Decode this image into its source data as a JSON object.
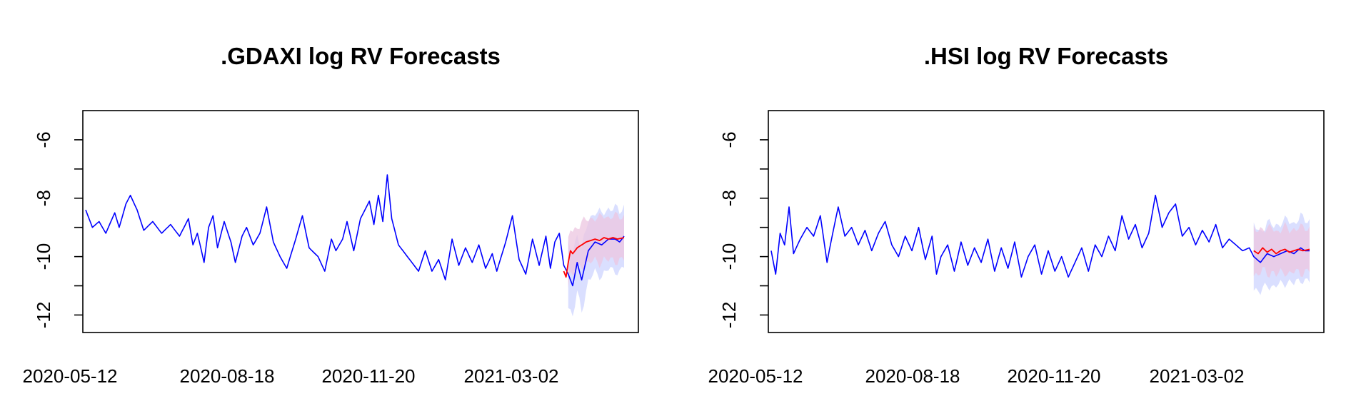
{
  "chart_data": [
    {
      "type": "line",
      "title": ".GDAXI log RV Forecasts",
      "xlabel": "",
      "ylabel": "",
      "x_tick_labels": [
        "2020-05-12",
        "2020-08-18",
        "2020-11-20",
        "2021-03-02"
      ],
      "y_tick_labels": [
        "-12",
        "-10",
        "-8",
        "-6"
      ],
      "y_ticks": [
        -12,
        -10,
        -8,
        -6
      ],
      "ylim": [
        -12.6,
        -5.0
      ],
      "n_points": 242,
      "forecast_start_index": 216,
      "grid": false,
      "legend": "none",
      "colors": {
        "realized": "#0000ff",
        "forecast": "#ff0000",
        "band_realized": "#d6dcff",
        "band_forecast": "#ecc6e0"
      },
      "series": [
        {
          "values_by_index": [
            [
              0,
              -8.4
            ],
            [
              3,
              -9.0
            ],
            [
              6,
              -8.8
            ],
            [
              9,
              -9.2
            ],
            [
              13,
              -8.5
            ],
            [
              15,
              -9.0
            ],
            [
              18,
              -8.2
            ],
            [
              20,
              -7.9
            ],
            [
              23,
              -8.4
            ],
            [
              26,
              -9.1
            ],
            [
              30,
              -8.8
            ],
            [
              34,
              -9.2
            ],
            [
              38,
              -8.9
            ],
            [
              42,
              -9.3
            ],
            [
              46,
              -8.7
            ],
            [
              48,
              -9.6
            ],
            [
              50,
              -9.2
            ],
            [
              53,
              -10.2
            ],
            [
              55,
              -9.0
            ],
            [
              57,
              -8.6
            ],
            [
              59,
              -9.7
            ],
            [
              62,
              -8.8
            ],
            [
              65,
              -9.5
            ],
            [
              67,
              -10.2
            ],
            [
              70,
              -9.3
            ],
            [
              72,
              -9.0
            ],
            [
              75,
              -9.6
            ],
            [
              78,
              -9.2
            ],
            [
              81,
              -8.3
            ],
            [
              84,
              -9.5
            ],
            [
              87,
              -10.0
            ],
            [
              90,
              -10.4
            ],
            [
              94,
              -9.4
            ],
            [
              97,
              -8.6
            ],
            [
              100,
              -9.7
            ],
            [
              104,
              -10.0
            ],
            [
              107,
              -10.5
            ],
            [
              110,
              -9.4
            ],
            [
              112,
              -9.8
            ],
            [
              115,
              -9.4
            ],
            [
              117,
              -8.8
            ],
            [
              120,
              -9.8
            ],
            [
              123,
              -8.7
            ],
            [
              127,
              -8.1
            ],
            [
              129,
              -8.9
            ],
            [
              131,
              -7.9
            ],
            [
              133,
              -8.8
            ],
            [
              135,
              -7.2
            ],
            [
              137,
              -8.7
            ],
            [
              140,
              -9.6
            ],
            [
              143,
              -9.9
            ],
            [
              146,
              -10.2
            ],
            [
              149,
              -10.5
            ],
            [
              152,
              -9.8
            ],
            [
              155,
              -10.5
            ],
            [
              158,
              -10.1
            ],
            [
              161,
              -10.8
            ],
            [
              164,
              -9.4
            ],
            [
              167,
              -10.3
            ],
            [
              170,
              -9.7
            ],
            [
              173,
              -10.2
            ],
            [
              176,
              -9.6
            ],
            [
              179,
              -10.4
            ],
            [
              182,
              -9.9
            ],
            [
              184,
              -10.5
            ],
            [
              188,
              -9.5
            ],
            [
              191,
              -8.6
            ],
            [
              194,
              -10.1
            ],
            [
              197,
              -10.6
            ],
            [
              200,
              -9.4
            ],
            [
              203,
              -10.3
            ],
            [
              206,
              -9.3
            ],
            [
              208,
              -10.4
            ],
            [
              210,
              -9.5
            ],
            [
              212,
              -9.2
            ],
            [
              214,
              -10.3
            ],
            [
              216,
              -10.6
            ],
            [
              218,
              -11.0
            ],
            [
              220,
              -10.2
            ],
            [
              222,
              -10.8
            ],
            [
              225,
              -9.8
            ],
            [
              228,
              -9.5
            ],
            [
              231,
              -9.6
            ],
            [
              234,
              -9.4
            ],
            [
              237,
              -9.4
            ],
            [
              239,
              -9.5
            ],
            [
              241,
              -9.3
            ]
          ]
        },
        {
          "values_by_index": [
            [
              214,
              -10.5
            ],
            [
              215,
              -10.7
            ],
            [
              216,
              -10.2
            ],
            [
              217,
              -9.8
            ],
            [
              218,
              -9.9
            ],
            [
              220,
              -9.7
            ],
            [
              222,
              -9.6
            ],
            [
              224,
              -9.5
            ],
            [
              226,
              -9.45
            ],
            [
              228,
              -9.4
            ],
            [
              230,
              -9.45
            ],
            [
              232,
              -9.35
            ],
            [
              234,
              -9.4
            ],
            [
              236,
              -9.35
            ],
            [
              238,
              -9.4
            ],
            [
              241,
              -9.35
            ]
          ]
        }
      ]
    },
    {
      "type": "line",
      "title": ".HSI log RV Forecasts",
      "xlabel": "",
      "ylabel": "",
      "x_tick_labels": [
        "2020-05-12",
        "2020-08-18",
        "2020-11-20",
        "2021-03-02"
      ],
      "y_tick_labels": [
        "-12",
        "-10",
        "-8",
        "-6"
      ],
      "y_ticks": [
        -12,
        -10,
        -8,
        -6
      ],
      "ylim": [
        -12.6,
        -5.0
      ],
      "n_points": 242,
      "forecast_start_index": 216,
      "grid": false,
      "legend": "none",
      "colors": {
        "realized": "#0000ff",
        "forecast": "#ff0000",
        "band_realized": "#d6dcff",
        "band_forecast": "#ecc6e0"
      },
      "series": [
        {
          "values_by_index": [
            [
              0,
              -9.8
            ],
            [
              2,
              -10.6
            ],
            [
              4,
              -9.2
            ],
            [
              6,
              -9.6
            ],
            [
              8,
              -8.3
            ],
            [
              10,
              -9.9
            ],
            [
              13,
              -9.4
            ],
            [
              16,
              -9.0
            ],
            [
              19,
              -9.3
            ],
            [
              22,
              -8.6
            ],
            [
              25,
              -10.2
            ],
            [
              27,
              -9.4
            ],
            [
              30,
              -8.3
            ],
            [
              33,
              -9.3
            ],
            [
              36,
              -9.0
            ],
            [
              39,
              -9.6
            ],
            [
              42,
              -9.1
            ],
            [
              45,
              -9.8
            ],
            [
              48,
              -9.2
            ],
            [
              51,
              -8.8
            ],
            [
              54,
              -9.6
            ],
            [
              57,
              -10.0
            ],
            [
              60,
              -9.3
            ],
            [
              63,
              -9.8
            ],
            [
              66,
              -9.0
            ],
            [
              69,
              -10.1
            ],
            [
              72,
              -9.3
            ],
            [
              74,
              -10.6
            ],
            [
              76,
              -10.0
            ],
            [
              79,
              -9.6
            ],
            [
              82,
              -10.5
            ],
            [
              85,
              -9.5
            ],
            [
              88,
              -10.3
            ],
            [
              91,
              -9.7
            ],
            [
              94,
              -10.2
            ],
            [
              97,
              -9.4
            ],
            [
              100,
              -10.5
            ],
            [
              103,
              -9.7
            ],
            [
              106,
              -10.4
            ],
            [
              109,
              -9.5
            ],
            [
              112,
              -10.7
            ],
            [
              115,
              -10.0
            ],
            [
              118,
              -9.6
            ],
            [
              121,
              -10.6
            ],
            [
              124,
              -9.8
            ],
            [
              127,
              -10.5
            ],
            [
              130,
              -10.0
            ],
            [
              133,
              -10.7
            ],
            [
              136,
              -10.2
            ],
            [
              139,
              -9.7
            ],
            [
              142,
              -10.5
            ],
            [
              145,
              -9.6
            ],
            [
              148,
              -10.0
            ],
            [
              151,
              -9.3
            ],
            [
              154,
              -9.8
            ],
            [
              157,
              -8.6
            ],
            [
              160,
              -9.4
            ],
            [
              163,
              -8.9
            ],
            [
              166,
              -9.7
            ],
            [
              169,
              -9.2
            ],
            [
              172,
              -7.9
            ],
            [
              175,
              -9.0
            ],
            [
              178,
              -8.5
            ],
            [
              181,
              -8.2
            ],
            [
              184,
              -9.3
            ],
            [
              187,
              -9.0
            ],
            [
              190,
              -9.6
            ],
            [
              193,
              -9.1
            ],
            [
              196,
              -9.5
            ],
            [
              199,
              -8.9
            ],
            [
              202,
              -9.7
            ],
            [
              205,
              -9.4
            ],
            [
              208,
              -9.6
            ],
            [
              211,
              -9.8
            ],
            [
              214,
              -9.7
            ],
            [
              216,
              -10.0
            ],
            [
              219,
              -10.2
            ],
            [
              222,
              -9.9
            ],
            [
              225,
              -10.0
            ],
            [
              228,
              -9.9
            ],
            [
              231,
              -9.8
            ],
            [
              234,
              -9.9
            ],
            [
              237,
              -9.7
            ],
            [
              239,
              -9.8
            ],
            [
              241,
              -9.8
            ]
          ]
        },
        {
          "values_by_index": [
            [
              216,
              -9.8
            ],
            [
              218,
              -9.9
            ],
            [
              220,
              -9.7
            ],
            [
              222,
              -9.85
            ],
            [
              224,
              -9.75
            ],
            [
              226,
              -9.9
            ],
            [
              228,
              -9.8
            ],
            [
              230,
              -9.75
            ],
            [
              232,
              -9.85
            ],
            [
              234,
              -9.8
            ],
            [
              236,
              -9.75
            ],
            [
              238,
              -9.8
            ],
            [
              241,
              -9.75
            ]
          ]
        }
      ]
    }
  ]
}
